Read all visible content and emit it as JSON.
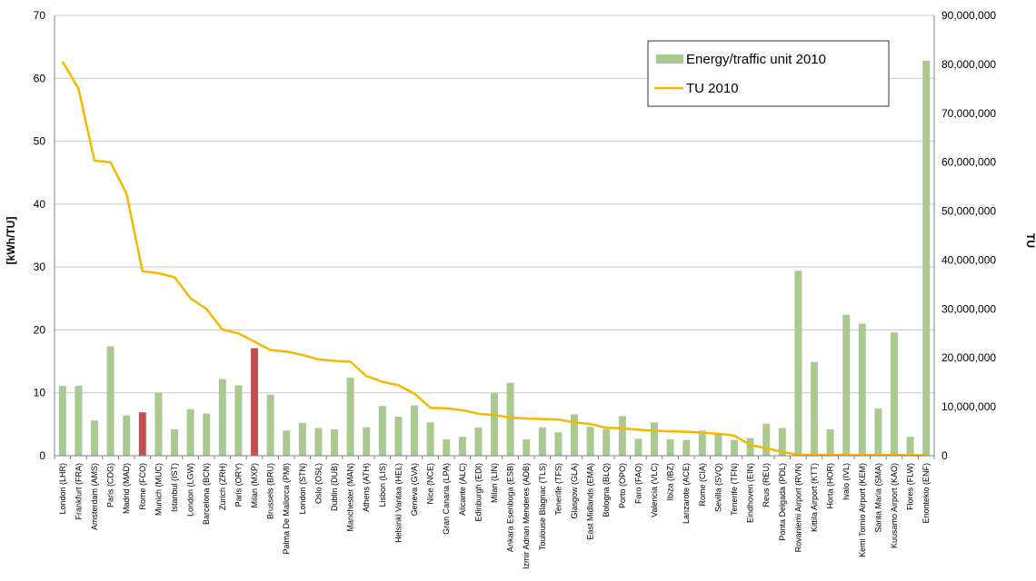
{
  "chart_data": {
    "type": "bar",
    "categories": [
      "London (LHR)",
      "Frankfurt (FRA)",
      "Amsterdam (AMS)",
      "Paris (CDG)",
      "Madrid (MAD)",
      "Rome (FCO)",
      "Munich (MUC)",
      "Istanbul (IST)",
      "London (LGW)",
      "Barcelona (BCN)",
      "Zurich (ZRH)",
      "Paris (ORY)",
      "Milan (MXP)",
      "Brussels (BRU)",
      "Palma De Mallorca (PMI)",
      "London (STN)",
      "Oslo (OSL)",
      "Dublin (DUB)",
      "Manchester (MAN)",
      "Athens (ATH)",
      "Lisbon (LIS)",
      "Helsinki Vantaa (HEL)",
      "Geneva (GVA)",
      "Nice (NCE)",
      "Gran Canaria (LPA)",
      "Alicante (ALC)",
      "Edinburgh (EDI)",
      "Milan (LIN)",
      "Ankara Esenboga (ESB)",
      "Izmir Adnan Menderes (ADB)",
      "Toulouse Blagnac (TLS)",
      "Tenerife (TFS)",
      "Glasgow (GLA)",
      "East Midlands (EMA)",
      "Bologna (BLQ)",
      "Porto (OPO)",
      "Faro (FAO)",
      "Valencia (VLC)",
      "Ibiza (IBZ)",
      "Lanzarote (ACE)",
      "Rome (CIA)",
      "Sevilla (SVQ)",
      "Tenerife (TFN)",
      "Eindhoven (EIN)",
      "Reus (REU)",
      "Ponta Delgada (PDL)",
      "Rovaniemi Airport (RVN)",
      "Kittila Airport (KTT)",
      "Horta (HOR)",
      "Ivalo (IVL)",
      "Kemi Tornio Airport (KEM)",
      "Santa Maria (SMA)",
      "Kuusamo Airport (KAO)",
      "Flores (FLW)",
      "Enontekio (ENF)"
    ],
    "series": [
      {
        "name": "Energy/traffic unit 2010",
        "axis": "left",
        "type": "bar",
        "color": "#a9c98f",
        "values": [
          11.1,
          11.1,
          5.6,
          17.4,
          6.4,
          6.9,
          10.0,
          4.2,
          7.4,
          6.7,
          12.2,
          11.2,
          17.1,
          9.7,
          4.0,
          5.2,
          4.4,
          4.2,
          12.4,
          4.5,
          7.9,
          6.2,
          8.0,
          5.3,
          2.6,
          3.0,
          4.5,
          10.0,
          11.6,
          2.6,
          4.5,
          3.7,
          6.6,
          4.6,
          4.2,
          6.3,
          2.7,
          5.3,
          2.6,
          2.5,
          4.0,
          3.6,
          2.5,
          2.8,
          5.1,
          4.4,
          29.4,
          14.9,
          4.2,
          22.4,
          21.0,
          7.5,
          19.6,
          3.0,
          62.8
        ]
      },
      {
        "name": "TU 2010",
        "axis": "right",
        "type": "line",
        "color": "#f5b800",
        "values": [
          80600000,
          75000000,
          60300000,
          60000000,
          53600000,
          37700000,
          37300000,
          36500000,
          32200000,
          30000000,
          25800000,
          25000000,
          23300000,
          21600000,
          21300000,
          20600000,
          19700000,
          19400000,
          19200000,
          16300000,
          15100000,
          14400000,
          12700000,
          9800000,
          9700000,
          9300000,
          8600000,
          8300000,
          7800000,
          7600000,
          7500000,
          7400000,
          6800000,
          6500000,
          5700000,
          5600000,
          5300000,
          5100000,
          5000000,
          4900000,
          4700000,
          4500000,
          4100000,
          2200000,
          1500000,
          800000,
          180000,
          180000,
          170000,
          160000,
          150000,
          140000,
          130000,
          110000,
          100000
        ]
      }
    ],
    "highlight_color": "#c0504d",
    "highlighted_categories": [
      "Rome (FCO)",
      "Milan (MXP)"
    ],
    "ylabel": "[kWh/TU]",
    "y2label": "TU",
    "ylim": [
      0,
      70
    ],
    "y2lim": [
      0,
      90000000
    ],
    "yticks": [
      "0",
      "10",
      "20",
      "30",
      "40",
      "50",
      "60",
      "70"
    ],
    "y2ticks": [
      "0",
      "10,000,000",
      "20,000,000",
      "30,000,000",
      "40,000,000",
      "50,000,000",
      "60,000,000",
      "70,000,000",
      "80,000,000",
      "90,000,000"
    ],
    "grid": true,
    "legend": {
      "position": "top-right",
      "entries": [
        "Energy/traffic unit 2010",
        "TU 2010"
      ]
    }
  }
}
